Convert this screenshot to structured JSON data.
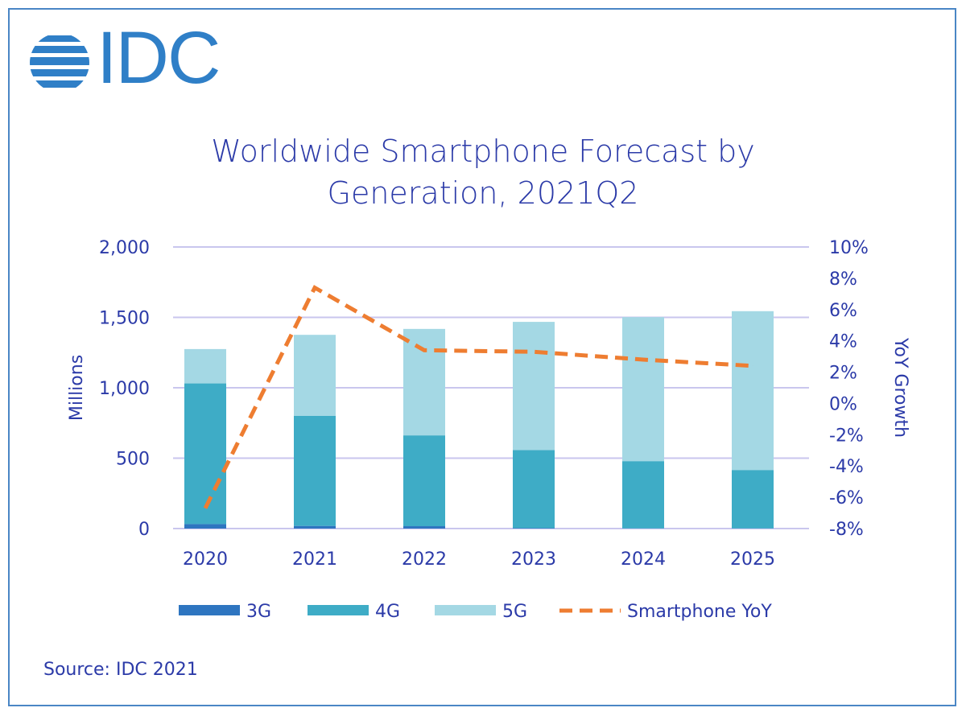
{
  "logo": {
    "text": "IDC",
    "color": "#2f7fc7"
  },
  "source": "Source: IDC 2021",
  "chart_data": {
    "type": "bar",
    "stacked": true,
    "title": [
      "Worldwide Smartphone Forecast by",
      "Generation, 2021Q2"
    ],
    "categories": [
      "2020",
      "2021",
      "2022",
      "2023",
      "2024",
      "2025"
    ],
    "series": [
      {
        "name": "3G",
        "type": "bar",
        "color": "#2e75c0",
        "values": [
          32,
          19,
          17,
          3,
          1,
          1
        ]
      },
      {
        "name": "4G",
        "type": "bar",
        "color": "#3eacc6",
        "values": [
          999,
          781,
          645,
          554,
          478,
          415
        ]
      },
      {
        "name": "5G",
        "type": "bar",
        "color": "#a4d8e4",
        "values": [
          244,
          576,
          756,
          911,
          1023,
          1128
        ]
      },
      {
        "name": "Smartphone YoY",
        "type": "line",
        "axis": "right",
        "dashed": true,
        "color": "#ee7d31",
        "values": [
          -6.7,
          7.4,
          3.4,
          3.3,
          2.8,
          2.4
        ]
      }
    ],
    "ylabel": "Millions",
    "ylim": [
      0,
      2000
    ],
    "yticks": [
      "0",
      "500",
      "1,000",
      "1,500",
      "2,000"
    ],
    "y2label": "YoY Growth",
    "y2lim": [
      -8,
      10
    ],
    "y2ticks": [
      "-8%",
      "-6%",
      "-4%",
      "-2%",
      "0%",
      "2%",
      "4%",
      "6%",
      "8%",
      "10%"
    ],
    "grid": true,
    "legend": "bottom",
    "gridColor": "#c9c6ee",
    "textColor": "#2b3aa8"
  }
}
